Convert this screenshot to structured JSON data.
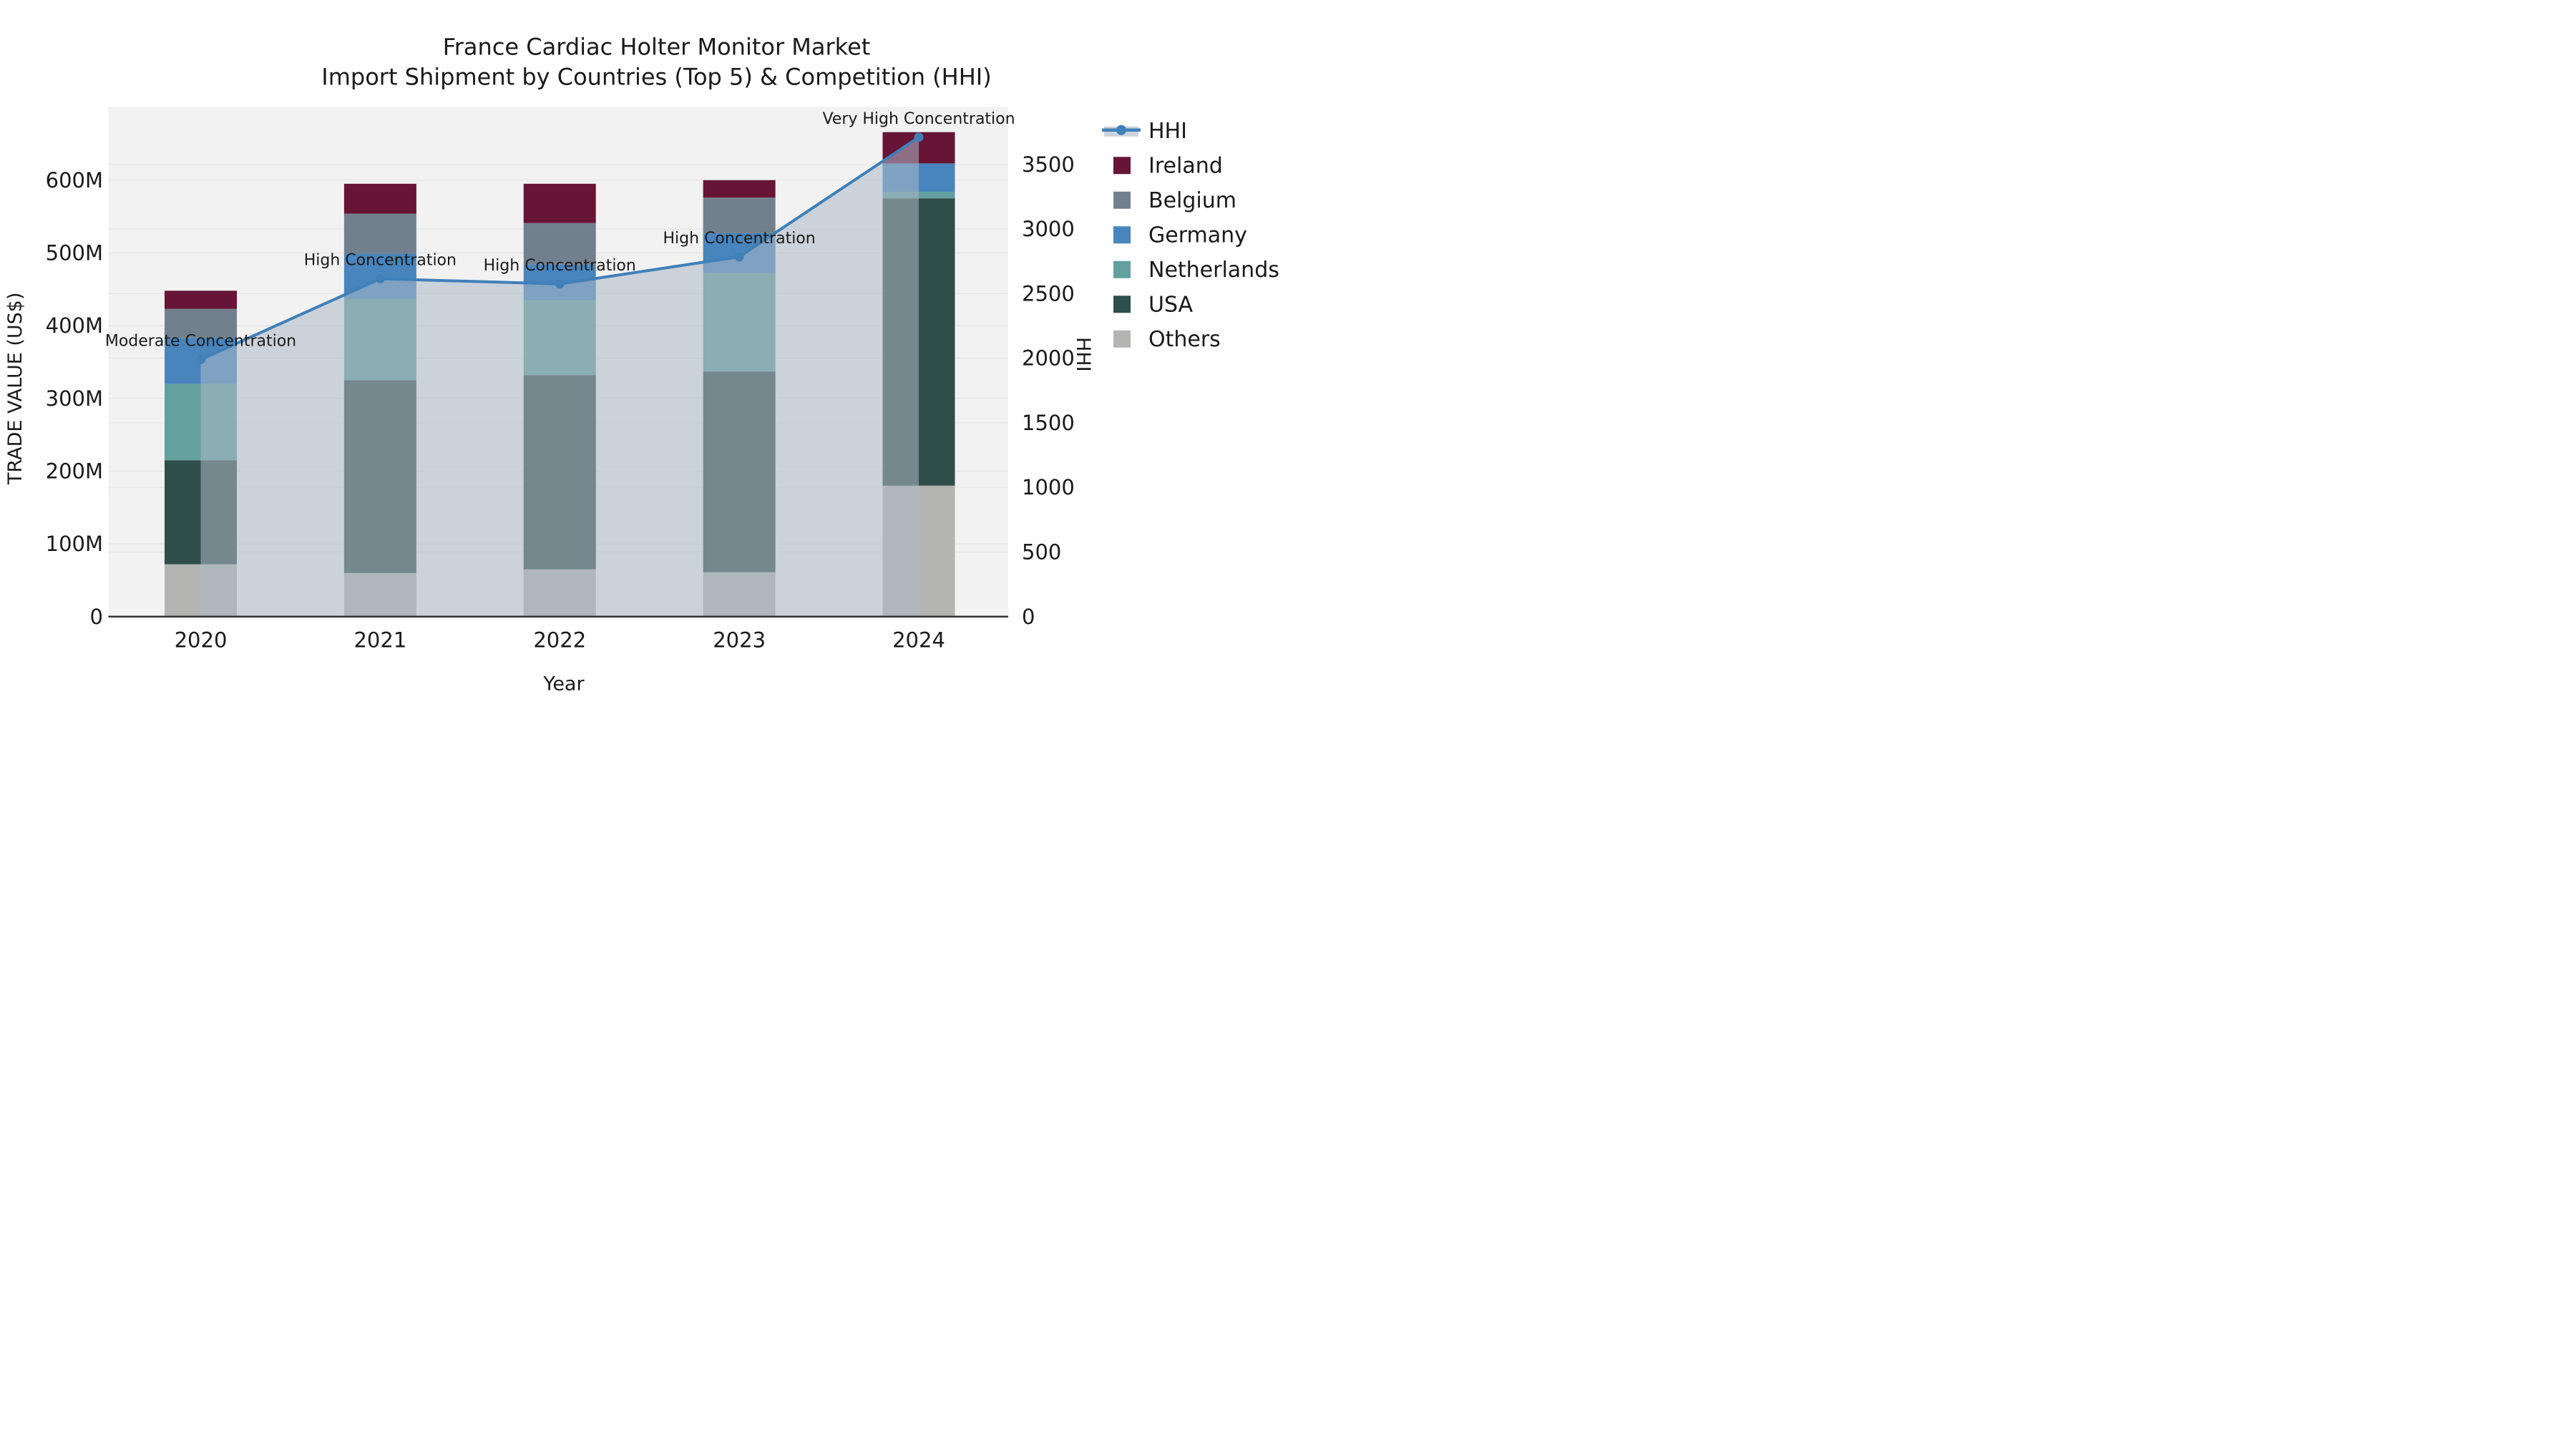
{
  "title": {
    "line1": "France Cardiac Holter Monitor Market",
    "line2": "Import Shipment by Countries (Top 5) & Competition (HHI)"
  },
  "chart_data": {
    "type": "bar",
    "subtype": "stacked-bars-with-hhi-line-and-area-overlay",
    "categories": [
      "2020",
      "2021",
      "2022",
      "2023",
      "2024"
    ],
    "series": [
      {
        "name": "Others",
        "color": "#B4B4B2",
        "values": [
          72,
          60,
          65,
          61,
          180
        ]
      },
      {
        "name": "USA",
        "color": "#2F4E4A",
        "values": [
          143,
          265,
          267,
          276,
          395
        ]
      },
      {
        "name": "Netherlands",
        "color": "#63A09E",
        "values": [
          105,
          112,
          103,
          135,
          9
        ]
      },
      {
        "name": "Germany",
        "color": "#4885BD",
        "values": [
          63,
          62,
          49,
          55,
          39
        ]
      },
      {
        "name": "Belgium",
        "color": "#72808E",
        "values": [
          40,
          55,
          57,
          49,
          0
        ]
      },
      {
        "name": "Ireland",
        "color": "#671537",
        "values": [
          25,
          41,
          54,
          24,
          43
        ]
      }
    ],
    "bar_totals_musd": [
      448,
      595,
      595,
      600,
      666
    ],
    "line_series": {
      "name": "HHI",
      "axis": "right",
      "color": "#4080B8",
      "values": [
        1990,
        2615,
        2575,
        2785,
        3710
      ]
    },
    "annotations": [
      "Moderate Concentration",
      "High Concentration",
      "High Concentration",
      "High Concentration",
      "Very High Concentration"
    ],
    "xlabel": "Year",
    "ylabel_left": "TRADE VALUE (US$)",
    "ylabel_right": "HHI",
    "yticks_left_labels": [
      "0",
      "100M",
      "200M",
      "300M",
      "400M",
      "500M",
      "600M"
    ],
    "yticks_left_values": [
      0,
      100,
      200,
      300,
      400,
      500,
      600
    ],
    "yticks_right_labels": [
      "0",
      "500",
      "1000",
      "1500",
      "2000",
      "2500",
      "3000",
      "3500"
    ],
    "yticks_right_values": [
      0,
      500,
      1000,
      1500,
      2000,
      2500,
      3000,
      3500
    ],
    "ylim_left_musd": [
      0,
      700
    ],
    "ylim_right_hhi": [
      0,
      3945
    ],
    "grid": "on",
    "legend_position": "right",
    "legend": [
      "HHI",
      "Ireland",
      "Belgium",
      "Germany",
      "Netherlands",
      "USA",
      "Others"
    ],
    "colors": {
      "hhi_line": "#4080B8",
      "hhi_area_fill": "rgba(173,184,199,0.55)",
      "hhi_legend_band": "#CCD2DC",
      "plot_background": "#F2F2F2",
      "figure_background": "#FFFFFF",
      "gridline": "#E6E6E6",
      "axis_spine": "#333333",
      "text": "#1A1A1A"
    }
  }
}
